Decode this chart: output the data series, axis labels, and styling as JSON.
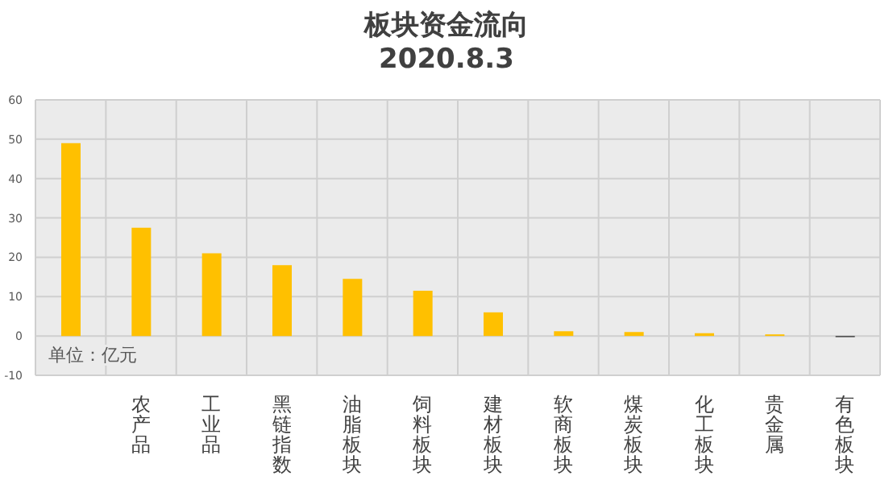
{
  "chart_data": {
    "type": "bar",
    "title": "板块资金流向",
    "subtitle": "2020.8.3",
    "categories": [
      null,
      "农产品",
      "工业品",
      "黑链指数",
      "油脂板块",
      "饲料板块",
      "建材板块",
      "软商板块",
      "煤炭板块",
      "化工板块",
      "贵金属",
      "有色板块"
    ],
    "values": [
      49,
      27.5,
      21,
      18,
      14.5,
      11.5,
      6,
      1.2,
      1,
      0.7,
      0.4,
      -0.3
    ],
    "colors": [
      "#ffc000",
      "#ffc000",
      "#ffc000",
      "#ffc000",
      "#ffc000",
      "#ffc000",
      "#ffc000",
      "#ffc000",
      "#ffc000",
      "#ffc000",
      "#ffc000",
      "#404040"
    ],
    "ylim": [
      -10,
      60
    ],
    "yticks": [
      -10,
      0,
      10,
      20,
      30,
      40,
      50,
      60
    ],
    "grid": true,
    "annotations": [
      "单位：亿元"
    ]
  }
}
